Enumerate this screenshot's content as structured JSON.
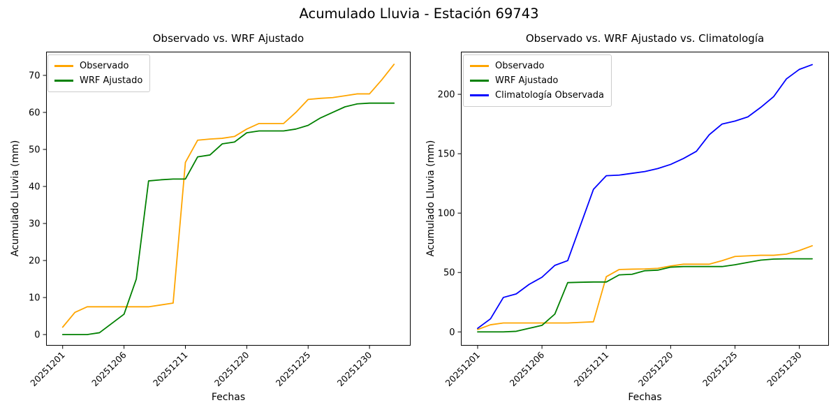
{
  "suptitle": "Acumulado Lluvia - Estación 69743",
  "colors": {
    "observado": "#FFA500",
    "wrf": "#008000",
    "clima": "#0000FF",
    "axis": "#000000",
    "legend_border": "#cccccc"
  },
  "chart_data": [
    {
      "type": "line",
      "title": "Observado vs. WRF Ajustado",
      "xlabel": "Fechas",
      "ylabel": "Acumulado Lluvia (mm)",
      "n_points": 28,
      "ylim": [
        -3.0,
        76.4
      ],
      "y_ticks": [
        0,
        10,
        20,
        30,
        40,
        50,
        60,
        70
      ],
      "x_tick_indices": [
        0,
        5,
        10,
        15,
        20,
        25
      ],
      "x_tick_labels": [
        "20251201",
        "20251206",
        "20251211",
        "20251220",
        "20251225",
        "20251230"
      ],
      "grid": false,
      "legend_position": "upper-left",
      "legend": [
        "Observado",
        "WRF Ajustado"
      ],
      "series": [
        {
          "name": "Observado",
          "color_key": "observado",
          "values": [
            2,
            6,
            7.5,
            7.5,
            7.5,
            7.5,
            7.5,
            7.5,
            8,
            8.5,
            46.5,
            52.5,
            52.8,
            53,
            53.5,
            55.5,
            57,
            57,
            57,
            60,
            63.5,
            63.8,
            64,
            64.5,
            65,
            65,
            68.8,
            73
          ]
        },
        {
          "name": "WRF Ajustado",
          "color_key": "wrf",
          "values": [
            0,
            0,
            0,
            0.5,
            3,
            5.5,
            15,
            41.5,
            41.8,
            42,
            42,
            48,
            48.5,
            51.5,
            52,
            54.5,
            55,
            55,
            55,
            55.5,
            56.5,
            58.5,
            60,
            61.5,
            62.3,
            62.5,
            62.5,
            62.5
          ]
        }
      ]
    },
    {
      "type": "line",
      "title": "Observado vs. WRF Ajustado vs. Climatología",
      "xlabel": "Fechas",
      "ylabel": "Acumulado Lluvia (mm)",
      "n_points": 27,
      "ylim": [
        -11.6,
        235.9
      ],
      "y_ticks": [
        0,
        50,
        100,
        150,
        200
      ],
      "x_tick_indices": [
        0,
        5,
        10,
        15,
        20,
        25
      ],
      "x_tick_labels": [
        "20251201",
        "20251206",
        "20251211",
        "20251220",
        "20251225",
        "20251230"
      ],
      "grid": false,
      "legend_position": "upper-left",
      "legend": [
        "Observado",
        "WRF Ajustado",
        "Climatología Observada"
      ],
      "series": [
        {
          "name": "Observado",
          "color_key": "observado",
          "values": [
            2,
            6,
            7.5,
            7.5,
            7.5,
            7.5,
            7.5,
            7.5,
            8,
            8.5,
            46.5,
            52.5,
            52.8,
            53,
            53.5,
            55.5,
            57,
            57,
            57,
            60,
            63.5,
            64,
            64.5,
            64.5,
            65.5,
            68.5,
            72.5
          ]
        },
        {
          "name": "WRF Ajustado",
          "color_key": "wrf",
          "values": [
            0,
            0,
            0,
            0.5,
            3,
            5.5,
            15,
            41.5,
            41.8,
            42,
            42,
            48,
            48.5,
            51.5,
            52,
            54.5,
            55,
            55,
            55,
            55,
            56.5,
            58.5,
            60.4,
            61.3,
            61.5,
            61.5,
            61.5
          ]
        },
        {
          "name": "Climatología Observada",
          "color_key": "clima",
          "values": [
            3,
            11,
            29,
            32,
            40,
            46,
            56,
            60,
            90,
            120,
            131.5,
            132,
            133.5,
            135,
            137.5,
            141,
            146,
            152,
            166,
            175,
            177.5,
            181,
            189,
            198,
            213,
            221,
            225
          ]
        }
      ]
    }
  ]
}
